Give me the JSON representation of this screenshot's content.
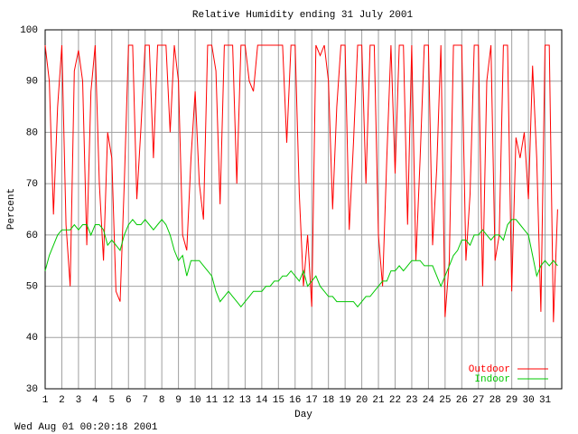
{
  "chart_data": {
    "type": "line",
    "title": "Relative Humidity ending 31 July 2001",
    "x_label": "Day",
    "y_label": "Percent",
    "footer": "Wed Aug 01 00:20:18 2001",
    "xlim": [
      1,
      32
    ],
    "ylim": [
      30,
      100
    ],
    "xticks": [
      1,
      2,
      3,
      4,
      5,
      6,
      7,
      8,
      9,
      10,
      11,
      12,
      13,
      14,
      15,
      16,
      17,
      18,
      19,
      20,
      21,
      22,
      23,
      24,
      25,
      26,
      27,
      28,
      29,
      30,
      31
    ],
    "yticks": [
      30,
      40,
      50,
      60,
      70,
      80,
      90,
      100
    ],
    "grid": true,
    "legend": "lower-right",
    "x": [
      1,
      1.25,
      1.5,
      1.75,
      2,
      2.25,
      2.5,
      2.75,
      3,
      3.25,
      3.5,
      3.75,
      4,
      4.25,
      4.5,
      4.75,
      5,
      5.25,
      5.5,
      5.75,
      6,
      6.25,
      6.5,
      6.75,
      7,
      7.25,
      7.5,
      7.75,
      8,
      8.25,
      8.5,
      8.75,
      9,
      9.25,
      9.5,
      9.75,
      10,
      10.25,
      10.5,
      10.75,
      11,
      11.25,
      11.5,
      11.75,
      12,
      12.25,
      12.5,
      12.75,
      13,
      13.25,
      13.5,
      13.75,
      14,
      14.25,
      14.5,
      14.75,
      15,
      15.25,
      15.5,
      15.75,
      16,
      16.25,
      16.5,
      16.75,
      17,
      17.25,
      17.5,
      17.75,
      18,
      18.25,
      18.5,
      18.75,
      19,
      19.25,
      19.5,
      19.75,
      20,
      20.25,
      20.5,
      20.75,
      21,
      21.25,
      21.5,
      21.75,
      22,
      22.25,
      22.5,
      22.75,
      23,
      23.25,
      23.5,
      23.75,
      24,
      24.25,
      24.5,
      24.75,
      25,
      25.25,
      25.5,
      25.75,
      26,
      26.25,
      26.5,
      26.75,
      27,
      27.25,
      27.5,
      27.75,
      28,
      28.25,
      28.5,
      28.75,
      29,
      29.25,
      29.5,
      29.75,
      30,
      30.25,
      30.5,
      30.75,
      31,
      31.25,
      31.5,
      31.75
    ],
    "series": [
      {
        "name": "Outdoor",
        "color": "#ff0000",
        "values": [
          97,
          90,
          64,
          85,
          97,
          62,
          50,
          92,
          96,
          90,
          58,
          88,
          97,
          70,
          55,
          80,
          75,
          49,
          47,
          70,
          97,
          97,
          67,
          81,
          97,
          97,
          75,
          97,
          97,
          97,
          80,
          97,
          90,
          60,
          57,
          75,
          88,
          70,
          63,
          97,
          97,
          92,
          66,
          97,
          97,
          97,
          70,
          97,
          97,
          90,
          88,
          97,
          97,
          97,
          97,
          97,
          97,
          97,
          78,
          97,
          97,
          68,
          50,
          60,
          46,
          97,
          95,
          97,
          90,
          65,
          85,
          97,
          97,
          61,
          78,
          97,
          97,
          70,
          97,
          97,
          60,
          50,
          75,
          97,
          72,
          97,
          97,
          62,
          97,
          55,
          75,
          97,
          97,
          58,
          73,
          97,
          44,
          55,
          97,
          97,
          97,
          55,
          68,
          97,
          97,
          50,
          90,
          97,
          55,
          60,
          97,
          97,
          49,
          79,
          75,
          80,
          67,
          93,
          75,
          45,
          97,
          97,
          43,
          65
        ]
      },
      {
        "name": "Indoor",
        "color": "#00c800",
        "values": [
          53,
          56,
          58,
          60,
          61,
          61,
          61,
          62,
          61,
          62,
          62,
          60,
          62,
          62,
          61,
          58,
          59,
          58,
          57,
          60,
          62,
          63,
          62,
          62,
          63,
          62,
          61,
          62,
          63,
          62,
          60,
          57,
          55,
          56,
          52,
          55,
          55,
          55,
          54,
          53,
          52,
          49,
          47,
          48,
          49,
          48,
          47,
          46,
          47,
          48,
          49,
          49,
          49,
          50,
          50,
          51,
          51,
          52,
          52,
          53,
          52,
          51,
          53,
          50,
          51,
          52,
          50,
          49,
          48,
          48,
          47,
          47,
          47,
          47,
          47,
          46,
          47,
          48,
          48,
          49,
          50,
          51,
          51,
          53,
          53,
          54,
          53,
          54,
          55,
          55,
          55,
          54,
          54,
          54,
          52,
          50,
          52,
          54,
          56,
          57,
          59,
          59,
          58,
          60,
          60,
          61,
          60,
          59,
          60,
          60,
          59,
          62,
          63,
          63,
          62,
          61,
          60,
          56,
          52,
          54,
          55,
          54,
          55,
          54
        ]
      }
    ]
  }
}
